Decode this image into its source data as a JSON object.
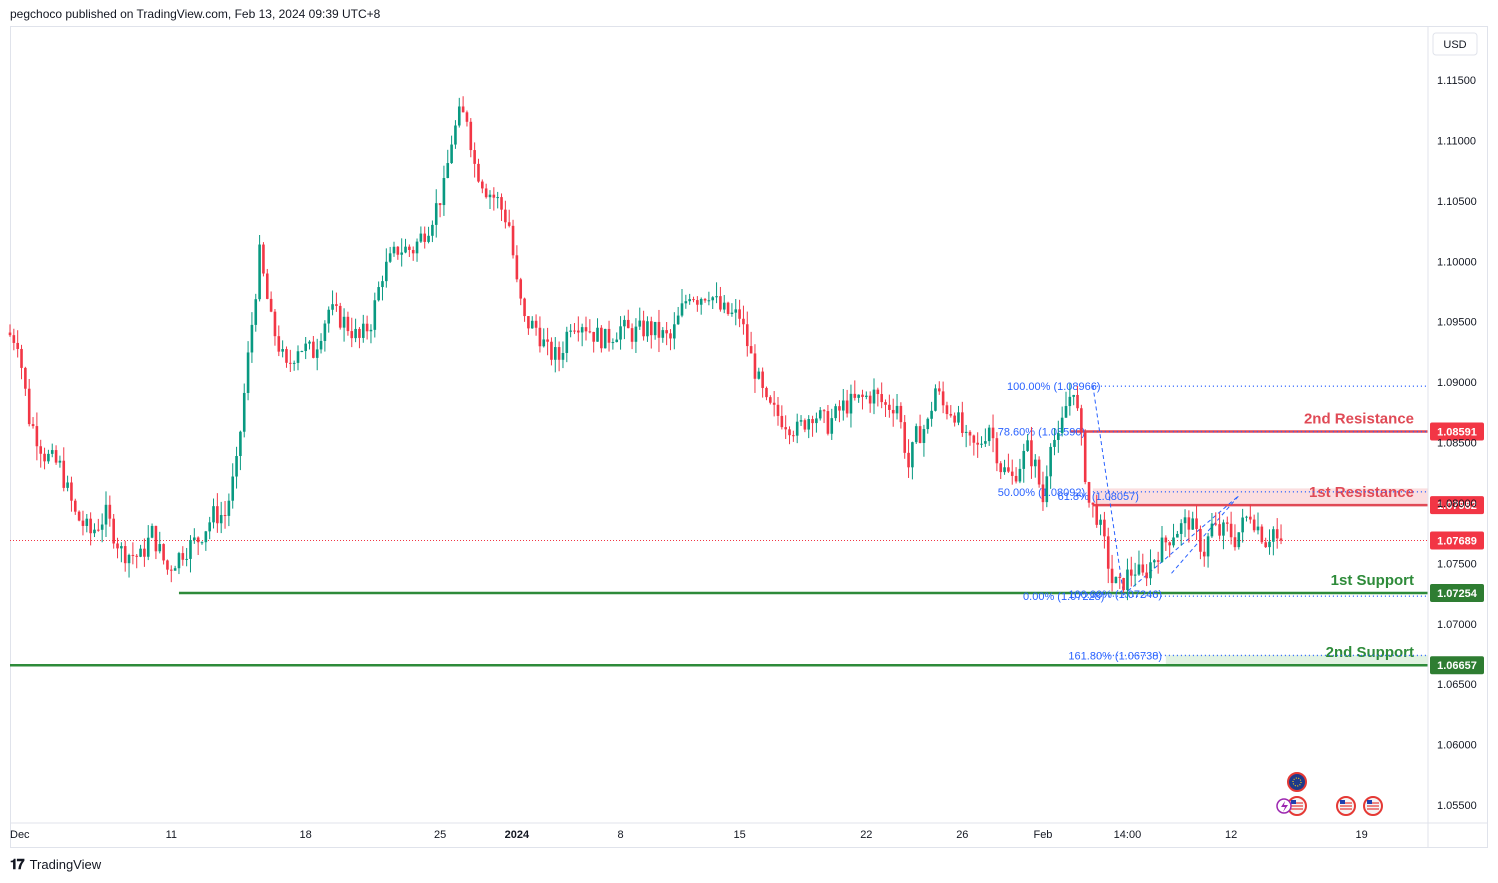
{
  "header": {
    "publisher_line": "pegchoco published on TradingView.com, Feb 13, 2024 09:39 UTC+8"
  },
  "footer": {
    "brand": "TradingView"
  },
  "chart_data": {
    "type": "candlestick",
    "currency": "USD",
    "y_axis": {
      "range": [
        1.0525,
        1.1165
      ],
      "ticks": [
        "1.11500",
        "1.11000",
        "1.10500",
        "1.10000",
        "1.09500",
        "1.09000",
        "1.08500",
        "1.08000",
        "1.07500",
        "1.07000",
        "1.06500",
        "1.06000",
        "1.05500"
      ]
    },
    "x_axis": {
      "labels": [
        {
          "label": "Dec",
          "bar": 0
        },
        {
          "label": "11",
          "bar": 42
        },
        {
          "label": "18",
          "bar": 77
        },
        {
          "label": "25",
          "bar": 112
        },
        {
          "label": "2024",
          "bar": 132
        },
        {
          "label": "8",
          "bar": 159
        },
        {
          "label": "15",
          "bar": 190
        },
        {
          "label": "22",
          "bar": 223
        },
        {
          "label": "26",
          "bar": 248
        },
        {
          "label": "Feb",
          "bar": 269
        },
        {
          "label": "14:00",
          "bar": 291
        },
        {
          "label": "12",
          "bar": 318
        },
        {
          "label": "19",
          "bar": 352
        }
      ]
    },
    "price_path": [
      [
        0,
        1.0941
      ],
      [
        3,
        1.0935
      ],
      [
        6,
        1.087
      ],
      [
        10,
        1.084
      ],
      [
        14,
        1.083
      ],
      [
        18,
        1.079
      ],
      [
        22,
        1.0775
      ],
      [
        26,
        1.079
      ],
      [
        30,
        1.076
      ],
      [
        35,
        1.0755
      ],
      [
        38,
        1.0775
      ],
      [
        42,
        1.0745
      ],
      [
        46,
        1.076
      ],
      [
        50,
        1.077
      ],
      [
        54,
        1.079
      ],
      [
        57,
        1.079
      ],
      [
        60,
        1.083
      ],
      [
        63,
        1.092
      ],
      [
        66,
        1.1005
      ],
      [
        69,
        1.095
      ],
      [
        73,
        1.091
      ],
      [
        76,
        1.093
      ],
      [
        80,
        1.0925
      ],
      [
        84,
        1.096
      ],
      [
        88,
        1.095
      ],
      [
        92,
        1.0935
      ],
      [
        95,
        1.095
      ],
      [
        98,
        1.099
      ],
      [
        102,
        1.101
      ],
      [
        106,
        1.101
      ],
      [
        110,
        1.103
      ],
      [
        114,
        1.106
      ],
      [
        116,
        1.11
      ],
      [
        118,
        1.112
      ],
      [
        120,
        1.112
      ],
      [
        122,
        1.108
      ],
      [
        125,
        1.106
      ],
      [
        128,
        1.105
      ],
      [
        131,
        1.103
      ],
      [
        133,
        1.098
      ],
      [
        135,
        1.095
      ],
      [
        138,
        1.0945
      ],
      [
        141,
        1.0925
      ],
      [
        144,
        1.092
      ],
      [
        147,
        1.095
      ],
      [
        150,
        1.095
      ],
      [
        153,
        1.094
      ],
      [
        156,
        1.0935
      ],
      [
        160,
        1.0945
      ],
      [
        163,
        1.094
      ],
      [
        167,
        1.0945
      ],
      [
        170,
        1.094
      ],
      [
        173,
        1.0935
      ],
      [
        176,
        1.096
      ],
      [
        178,
        1.0975
      ],
      [
        180,
        1.097
      ],
      [
        183,
        1.0975
      ],
      [
        186,
        1.096
      ],
      [
        189,
        1.0955
      ],
      [
        191,
        1.0955
      ],
      [
        194,
        1.092
      ],
      [
        198,
        1.088
      ],
      [
        202,
        1.087
      ],
      [
        206,
        1.086
      ],
      [
        210,
        1.0875
      ],
      [
        214,
        1.0865
      ],
      [
        218,
        1.088
      ],
      [
        222,
        1.0885
      ],
      [
        226,
        1.089
      ],
      [
        229,
        1.088
      ],
      [
        232,
        1.0882
      ],
      [
        235,
        1.083
      ],
      [
        237,
        1.0855
      ],
      [
        240,
        1.0865
      ],
      [
        242,
        1.0895
      ],
      [
        244,
        1.088
      ],
      [
        247,
        1.0875
      ],
      [
        250,
        1.085
      ],
      [
        253,
        1.0845
      ],
      [
        256,
        1.0865
      ],
      [
        259,
        1.083
      ],
      [
        262,
        1.082
      ],
      [
        266,
        1.0845
      ],
      [
        268,
        1.083
      ],
      [
        270,
        1.0802
      ],
      [
        272,
        1.0855
      ],
      [
        274,
        1.085
      ],
      [
        276,
        1.088
      ],
      [
        278,
        1.0897
      ],
      [
        280,
        1.085
      ],
      [
        282,
        1.08
      ],
      [
        284,
        1.079
      ],
      [
        286,
        1.0765
      ],
      [
        288,
        1.0735
      ],
      [
        290,
        1.073
      ],
      [
        292,
        1.074
      ],
      [
        294,
        1.0745
      ],
      [
        296,
        1.0738
      ],
      [
        298,
        1.075
      ],
      [
        300,
        1.076
      ],
      [
        302,
        1.0768
      ],
      [
        304,
        1.0776
      ],
      [
        306,
        1.078
      ],
      [
        308,
        1.0785
      ],
      [
        310,
        1.0772
      ],
      [
        312,
        1.076
      ],
      [
        314,
        1.078
      ],
      [
        316,
        1.0775
      ],
      [
        318,
        1.0778
      ],
      [
        320,
        1.077
      ],
      [
        322,
        1.0782
      ],
      [
        324,
        1.0792
      ],
      [
        326,
        1.078
      ],
      [
        328,
        1.0769
      ],
      [
        330,
        1.0778
      ],
      [
        331,
        1.0769
      ]
    ],
    "current_price": "1.07689",
    "levels": [
      {
        "name": "2nd Resistance",
        "price": 1.08591,
        "price_label": "1.08591",
        "kind": "resistance"
      },
      {
        "name": "1st Resistance",
        "price": 1.07982,
        "price_label": "1.07982",
        "kind": "resistance"
      },
      {
        "name": "1st Support",
        "price": 1.07254,
        "price_label": "1.07254",
        "kind": "support"
      },
      {
        "name": "2nd Support",
        "price": 1.06657,
        "price_label": "1.06657",
        "kind": "support"
      }
    ],
    "fib_labels": [
      {
        "label": "100.00% (1.08966)",
        "price": 1.08966
      },
      {
        "label": "78.60% (1.08590)",
        "price": 1.0859
      },
      {
        "label": "50.00% (1.08092)",
        "price": 1.08092
      },
      {
        "label": "0.00% (1.07228)",
        "price": 1.07228
      },
      {
        "label": "161.80% (1.06738)",
        "price": 1.06738
      }
    ],
    "fib_overlap_labels": [
      {
        "label": "61.8% (1.08057)",
        "price": 1.08057
      },
      {
        "label": "100.00% (1.07246)",
        "price": 1.07246
      }
    ],
    "colors": {
      "bull": "#089981",
      "bear": "#f23645",
      "resistance": "#e04a56",
      "support": "#2e8b3a",
      "fib": "#2962ff",
      "price_tag": "#f23645"
    }
  }
}
